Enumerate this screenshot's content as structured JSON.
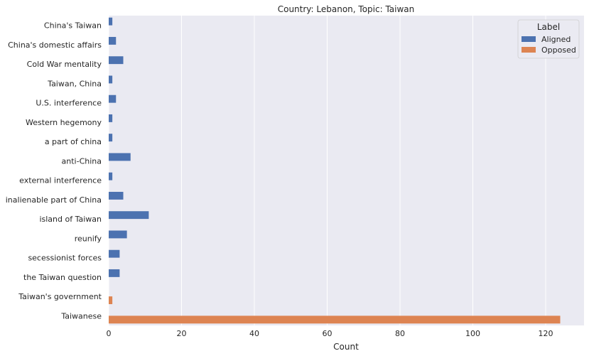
{
  "chart_data": {
    "type": "bar",
    "orientation": "horizontal",
    "title": "Country: Lebanon, Topic: Taiwan",
    "xlabel": "Count",
    "ylabel": "",
    "xlim": [
      0,
      130
    ],
    "xticks": [
      0,
      20,
      40,
      60,
      80,
      100,
      120
    ],
    "grid": true,
    "legend_placement": "top-right",
    "legend_title": "Label",
    "categories": [
      "China's Taiwan",
      "China's domestic affairs",
      "Cold War mentality",
      "Taiwan, China",
      "U.S. interference",
      "Western hegemony",
      "a part of china",
      "anti-China",
      "external interference",
      "inalienable part of China",
      "island of Taiwan",
      "reunify",
      "secessionist forces",
      "the Taiwan question",
      "Taiwan's government",
      "Taiwanese"
    ],
    "series": [
      {
        "name": "Aligned",
        "color": "#4c72b0",
        "values": [
          1,
          2,
          4,
          1,
          2,
          1,
          1,
          6,
          1,
          4,
          11,
          5,
          3,
          3,
          0,
          0
        ]
      },
      {
        "name": "Opposed",
        "color": "#dd8452",
        "values": [
          0,
          0,
          0,
          0,
          0,
          0,
          0,
          0,
          0,
          0,
          0,
          0,
          0,
          0,
          1,
          124
        ]
      }
    ],
    "colors": {
      "plot_background": "#eaeaf2",
      "grid": "#ffffff",
      "text": "#262626"
    }
  }
}
